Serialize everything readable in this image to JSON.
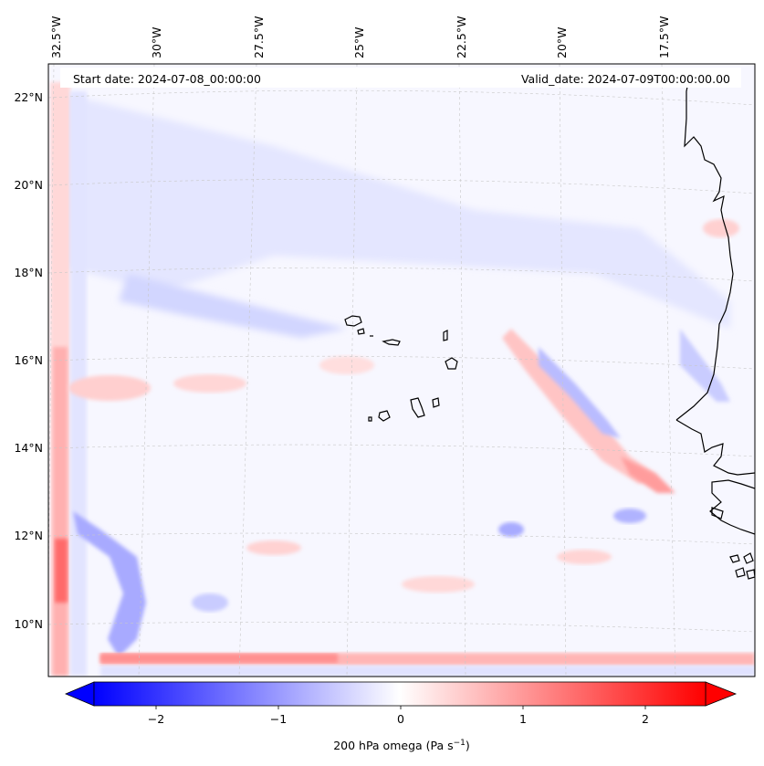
{
  "map": {
    "start_date": "Start date: 2024-07-08_00:00:00",
    "valid_date": "Valid_date: 2024-07-09T00:00:00.00",
    "lon_labels": [
      "32.5°W",
      "30°W",
      "27.5°W",
      "25°W",
      "22.5°W",
      "20°W",
      "17.5°W"
    ],
    "lat_labels": [
      "22°N",
      "20°N",
      "18°N",
      "16°N",
      "14°N",
      "12°N",
      "10°N"
    ],
    "field": "200 hPa omega",
    "colors": {
      "negative": "#0000ff",
      "zero": "#f7f7ff",
      "positive": "#ff0000",
      "coast": "#000000",
      "grid": "#b0b0b0"
    }
  },
  "colorbar": {
    "label_prefix": "200 hPa omega (Pa s",
    "label_exp": "−1",
    "label_suffix": ")",
    "ticks": [
      "−2",
      "−1",
      "0",
      "1",
      "2"
    ],
    "tick_values": [
      -2,
      -1,
      0,
      1,
      2
    ],
    "range": [
      -2.6,
      2.6
    ],
    "extend": "both"
  }
}
